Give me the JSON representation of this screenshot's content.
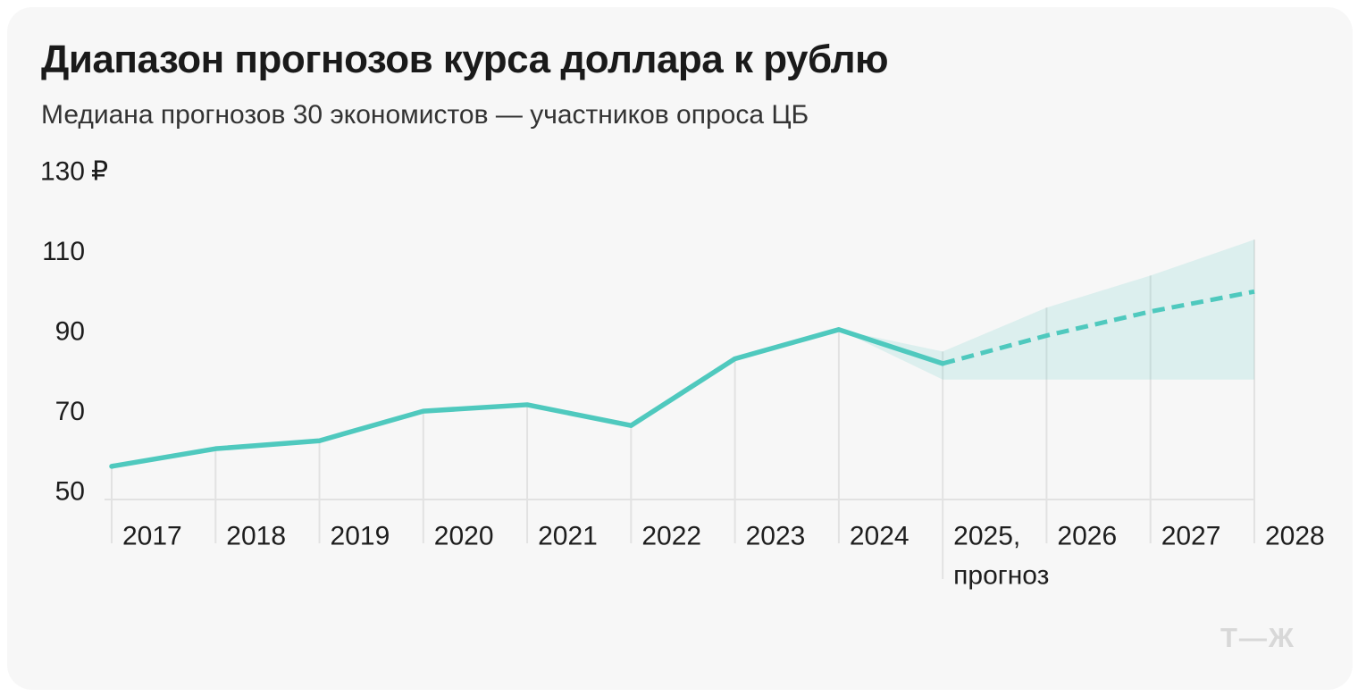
{
  "header": {
    "title": "Диапазон прогнозов курса доллара к рублю",
    "subtitle": "Медиана прогнозов 30 экономистов — участников опроса ЦБ"
  },
  "footer": {
    "logo_text": "Т—Ж"
  },
  "chart_data": {
    "type": "line",
    "title": "Диапазон прогнозов курса доллара к рублю",
    "subtitle": "Медиана прогнозов 30 экономистов — участников опроса ЦБ",
    "ylim": [
      50,
      130
    ],
    "grid": "vertical-droplines",
    "legend": "none",
    "y_ticks": [
      {
        "value": 130,
        "label": "130",
        "suffix": "₽"
      },
      {
        "value": 110,
        "label": "110"
      },
      {
        "value": 90,
        "label": "90"
      },
      {
        "value": 70,
        "label": "70"
      },
      {
        "value": 50,
        "label": "50"
      }
    ],
    "x_labels": [
      {
        "lines": [
          "2017"
        ]
      },
      {
        "lines": [
          "2018"
        ]
      },
      {
        "lines": [
          "2019"
        ]
      },
      {
        "lines": [
          "2020"
        ]
      },
      {
        "lines": [
          "2021"
        ]
      },
      {
        "lines": [
          "2022"
        ]
      },
      {
        "lines": [
          "2023"
        ]
      },
      {
        "lines": [
          "2024"
        ]
      },
      {
        "lines": [
          "2025,",
          "прогноз"
        ]
      },
      {
        "lines": [
          "2026"
        ]
      },
      {
        "lines": [
          "2027"
        ]
      },
      {
        "lines": [
          "2028"
        ]
      }
    ],
    "series": [
      {
        "name": "actual",
        "style": "solid",
        "years": [
          2017,
          2018,
          2019,
          2020,
          2021,
          2022,
          2023,
          2024
        ],
        "values": [
          58.3,
          62.7,
          64.7,
          72.1,
          73.7,
          68.5,
          85.2,
          92.5
        ]
      },
      {
        "name": "forecast_median",
        "style": "dashed",
        "years": [
          2025,
          2026,
          2027,
          2028
        ],
        "values": [
          84,
          91,
          97,
          102
        ]
      }
    ],
    "band": {
      "name": "forecast_range",
      "attach": {
        "year": 2024,
        "value": 92.5
      },
      "years": [
        2025,
        2026,
        2027,
        2028
      ],
      "upper": [
        87,
        98,
        106,
        115
      ],
      "lower": [
        80,
        80,
        80,
        80
      ]
    },
    "colors": {
      "line": "#4fc9be",
      "band_fill": "#4fc9be",
      "band_opacity": 0.16,
      "grid": "#e2e2e2",
      "text": "#1d1d1d",
      "background": "#f7f7f7"
    }
  }
}
